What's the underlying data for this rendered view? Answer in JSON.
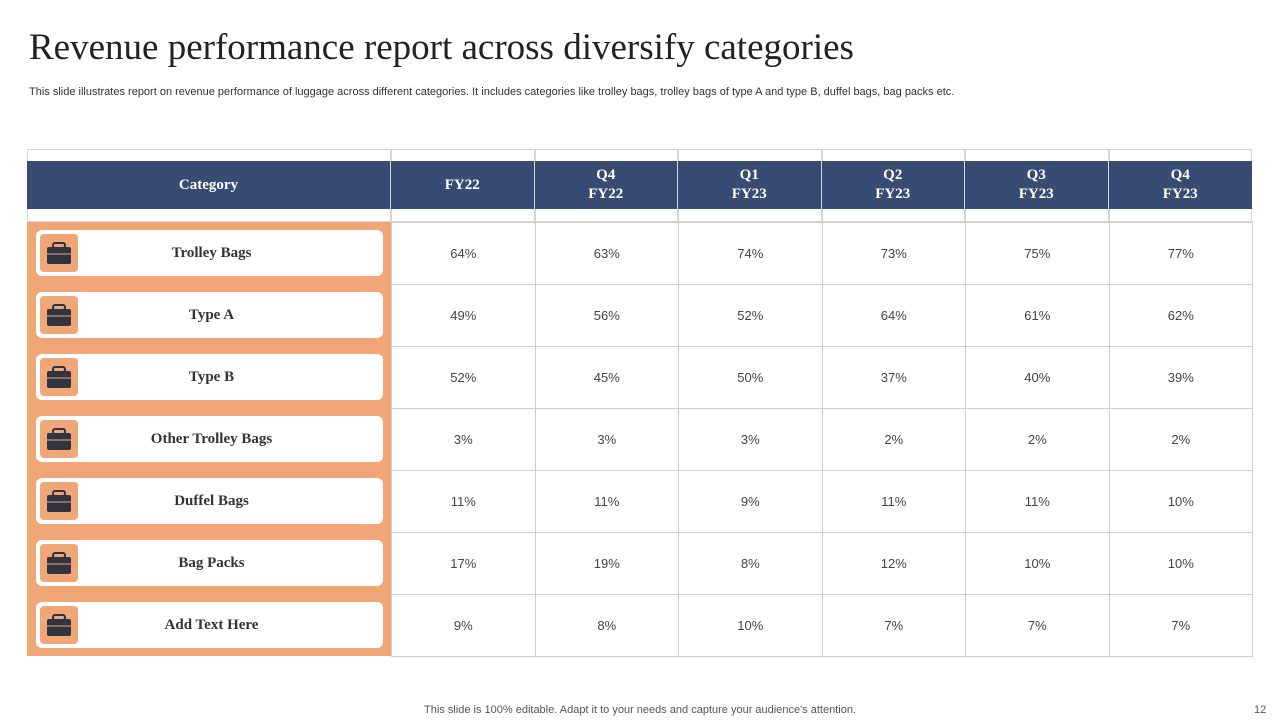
{
  "header": {
    "title": "Revenue performance report across diversify categories",
    "subtitle": "This slide illustrates report on revenue performance of luggage across different categories. It includes categories like trolley bags, trolley bags of type A and type B, duffel bags, bag packs etc."
  },
  "table": {
    "columns": [
      [
        "Category"
      ],
      [
        "FY22"
      ],
      [
        "Q4",
        "FY22"
      ],
      [
        "Q1",
        "FY23"
      ],
      [
        "Q2",
        "FY23"
      ],
      [
        "Q3",
        "FY23"
      ],
      [
        "Q4",
        "FY23"
      ]
    ],
    "rows": [
      {
        "label": "Trolley Bags",
        "cells": [
          "64%",
          "63%",
          "74%",
          "73%",
          "75%",
          "77%"
        ]
      },
      {
        "label": "Type A",
        "cells": [
          "49%",
          "56%",
          "52%",
          "64%",
          "61%",
          "62%"
        ]
      },
      {
        "label": "Type B",
        "cells": [
          "52%",
          "45%",
          "50%",
          "37%",
          "40%",
          "39%"
        ]
      },
      {
        "label": "Other Trolley Bags",
        "cells": [
          "3%",
          "3%",
          "3%",
          "2%",
          "2%",
          "2%"
        ]
      },
      {
        "label": "Duffel Bags",
        "cells": [
          "11%",
          "11%",
          "9%",
          "11%",
          "11%",
          "10%"
        ]
      },
      {
        "label": "Bag Packs",
        "cells": [
          "17%",
          "19%",
          "8%",
          "12%",
          "10%",
          "10%"
        ]
      },
      {
        "label": "Add Text Here",
        "cells": [
          "9%",
          "8%",
          "10%",
          "7%",
          "7%",
          "7%"
        ]
      }
    ]
  },
  "footer": {
    "note": "This slide is 100% editable. Adapt it to your needs and capture your audience's attention.",
    "page": "12"
  }
}
